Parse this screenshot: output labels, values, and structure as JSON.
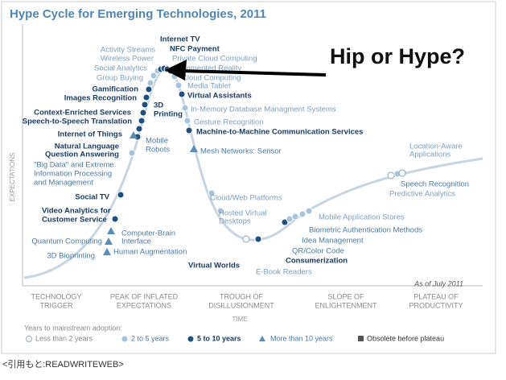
{
  "title": "Hype Cycle for Emerging Technologies, 2011",
  "overlay": "Hip or Hype?",
  "y_axis": "EXPECTATIONS",
  "x_axis": "TIME",
  "as_of": "As of July 2011",
  "labels": [
    "Activity Streams",
    "Wireless Power",
    "Social Analytics",
    "Group Buying",
    "Gamification",
    "Images Recognition",
    "Context-Enriched Services",
    "Speech-to-Speech Translation",
    "Internet of Things",
    "Natural Language",
    "Question Answering",
    "\"Big Data\" and Extreme",
    "Information Processing",
    "and Management",
    "Social TV",
    "Video Analytics for",
    "Customer Service",
    "Quantum Computing",
    "3D Bioprinting",
    "Computer-Brain",
    "Interface",
    "Human Augmentation",
    "Mobile",
    "Robots",
    "3D",
    "Printing",
    "Internet TV",
    "NFC Payment",
    "Private Cloud Computing",
    "Augmented Reality",
    "Cloud Computing",
    "Media Tablet",
    "Virtual Assistants",
    "In-Memory Database Managment Systems",
    "Gesture Recognition",
    "Machine-to-Machine Communication Services",
    "Mesh Networks: Sensor",
    "Cloud/Web Platforms",
    "Hosted Virtual",
    "Desktops",
    "Virtual Worlds",
    "E-Book Readers",
    "Mobile Application Stores",
    "Biometric Authentication Methods",
    "Idea Management",
    "QR/Color Code",
    "Consumerization",
    "Location-Aware",
    "Applications",
    "Speech Recognition",
    "Predictive Analytics"
  ],
  "phases": [
    [
      "TECHNOLOGY",
      "TRIGGER"
    ],
    [
      "PEAK OF INFLATED",
      "EXPECTATIONS"
    ],
    [
      "TROUGH OF",
      "DISILLUSIONMENT"
    ],
    [
      "SLOPE OF",
      "ENLIGHTENMENT"
    ],
    [
      "PLATEAU OF",
      "PRODUCTIVITY"
    ]
  ],
  "legend": {
    "title": "Years to mainstream adoption:",
    "items": [
      "Less than 2 years",
      "2 to 5 years",
      "5 to 10 years",
      "More than 10 years",
      "Obsolete before plateau"
    ]
  },
  "caption": "<引用もと:READWRITEWEB>"
}
